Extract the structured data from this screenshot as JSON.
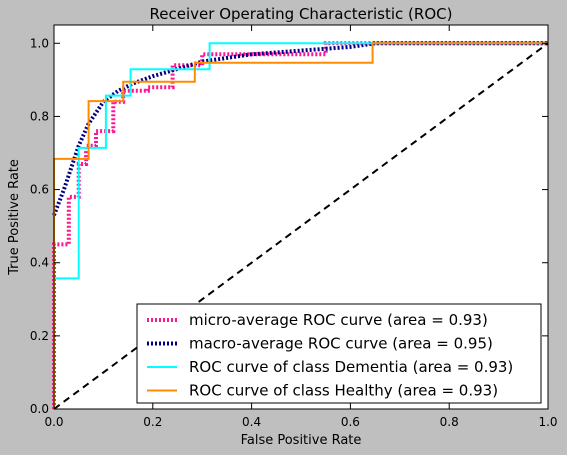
{
  "chart_data": {
    "type": "line",
    "title": "Receiver Operating Characteristic (ROC)",
    "xlabel": "False Positive Rate",
    "ylabel": "True Positive Rate",
    "xlim": [
      0.0,
      1.0
    ],
    "ylim": [
      0.0,
      1.05
    ],
    "xticks": [
      0.0,
      0.2,
      0.4,
      0.6,
      0.8,
      1.0
    ],
    "yticks": [
      0.0,
      0.2,
      0.4,
      0.6,
      0.8,
      1.0
    ],
    "xtick_labels": [
      "0.0",
      "0.2",
      "0.4",
      "0.6",
      "0.8",
      "1.0"
    ],
    "ytick_labels": [
      "0.0",
      "0.2",
      "0.4",
      "0.6",
      "0.8",
      "1.0"
    ],
    "grid": false,
    "legend_position": "lower-right",
    "series": [
      {
        "name": "micro-average ROC curve (area = 0.93)",
        "color": "#ff1493",
        "style": "dotted",
        "x": [
          0.0,
          0.0,
          0.03,
          0.03,
          0.05,
          0.05,
          0.065,
          0.065,
          0.085,
          0.085,
          0.12,
          0.12,
          0.14,
          0.14,
          0.19,
          0.19,
          0.24,
          0.24,
          0.3,
          0.3,
          0.55,
          0.55,
          1.0
        ],
        "y": [
          0.0,
          0.45,
          0.45,
          0.58,
          0.58,
          0.67,
          0.67,
          0.72,
          0.72,
          0.76,
          0.76,
          0.84,
          0.84,
          0.87,
          0.87,
          0.88,
          0.88,
          0.94,
          0.94,
          0.97,
          0.97,
          1.0,
          1.0
        ]
      },
      {
        "name": "macro-average ROC curve (area = 0.95)",
        "color": "#000080",
        "style": "dotted",
        "x": [
          0.0,
          0.02,
          0.05,
          0.07,
          0.1,
          0.13,
          0.16,
          0.2,
          0.25,
          0.3,
          0.4,
          0.5,
          0.6,
          0.65,
          0.8,
          1.0
        ],
        "y": [
          0.53,
          0.6,
          0.72,
          0.78,
          0.84,
          0.87,
          0.89,
          0.91,
          0.93,
          0.95,
          0.97,
          0.98,
          0.99,
          1.0,
          1.0,
          1.0
        ]
      },
      {
        "name": "ROC curve of class Dementia (area = 0.93)",
        "color": "#00ffff",
        "style": "solid",
        "x": [
          0.0,
          0.0,
          0.05,
          0.05,
          0.105,
          0.105,
          0.155,
          0.155,
          0.315,
          0.315,
          1.0
        ],
        "y": [
          0.0,
          0.357,
          0.357,
          0.714,
          0.714,
          0.857,
          0.857,
          0.929,
          0.929,
          1.0,
          1.0
        ]
      },
      {
        "name": "ROC curve of class Healthy (area = 0.93)",
        "color": "#ff8c00",
        "style": "solid",
        "x": [
          0.0,
          0.0,
          0.07,
          0.07,
          0.14,
          0.14,
          0.285,
          0.285,
          0.645,
          0.645,
          1.0
        ],
        "y": [
          0.0,
          0.684,
          0.684,
          0.842,
          0.842,
          0.895,
          0.895,
          0.947,
          0.947,
          1.0,
          1.0
        ]
      },
      {
        "color": "#000000",
        "style": "dashed",
        "x": [
          0.0,
          1.0
        ],
        "y": [
          0.0,
          1.0
        ]
      }
    ]
  }
}
